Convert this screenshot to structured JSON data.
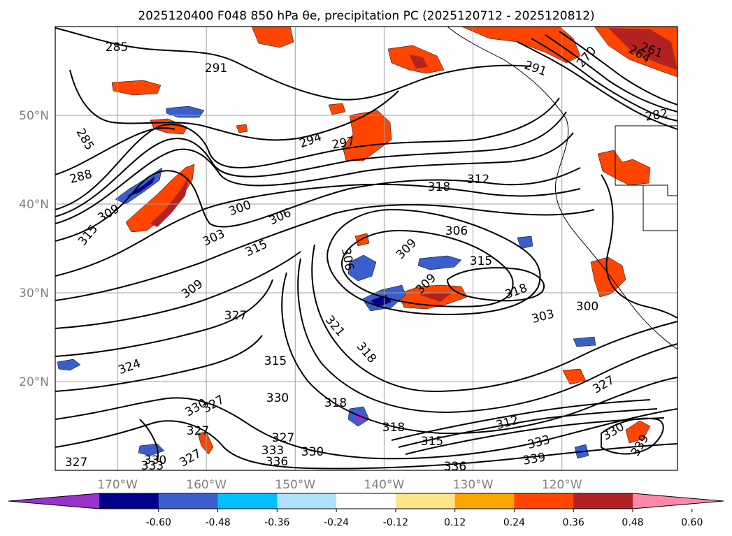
{
  "chart_data": {
    "type": "contour-map",
    "title": "2025120400 F048 850 hPa θe, precipitation PC (2025120712 - 2025120812)",
    "x_ticks": [
      "170°W",
      "160°W",
      "150°W",
      "140°W",
      "130°W",
      "120°W"
    ],
    "y_ticks": [
      "50°N",
      "40°N",
      "30°N",
      "20°N"
    ],
    "lon_range": [
      -177,
      -107
    ],
    "lat_range": [
      10,
      60
    ],
    "grid": true,
    "contour_labels": [
      "285",
      "288",
      "291",
      "294",
      "297",
      "300",
      "303",
      "306",
      "309",
      "312",
      "315",
      "318",
      "321",
      "324",
      "327",
      "330",
      "333",
      "336",
      "339",
      "261",
      "264",
      "270",
      "282"
    ],
    "colorbar": {
      "ticks": [
        "-0.60",
        "-0.48",
        "-0.36",
        "-0.24",
        "-0.12",
        "0.12",
        "0.24",
        "0.36",
        "0.48",
        "0.60"
      ],
      "colors": [
        "#9932cc",
        "#00008b",
        "#3a5fcd",
        "#00bfff",
        "#b0e0ff",
        "#ffffff",
        "#ffe58a",
        "#ffa500",
        "#ff4500",
        "#b22222",
        "#ff88aa"
      ]
    }
  },
  "colors": {
    "contour": "#000000",
    "grid": "#a0a0a0",
    "coast": "#000000"
  }
}
